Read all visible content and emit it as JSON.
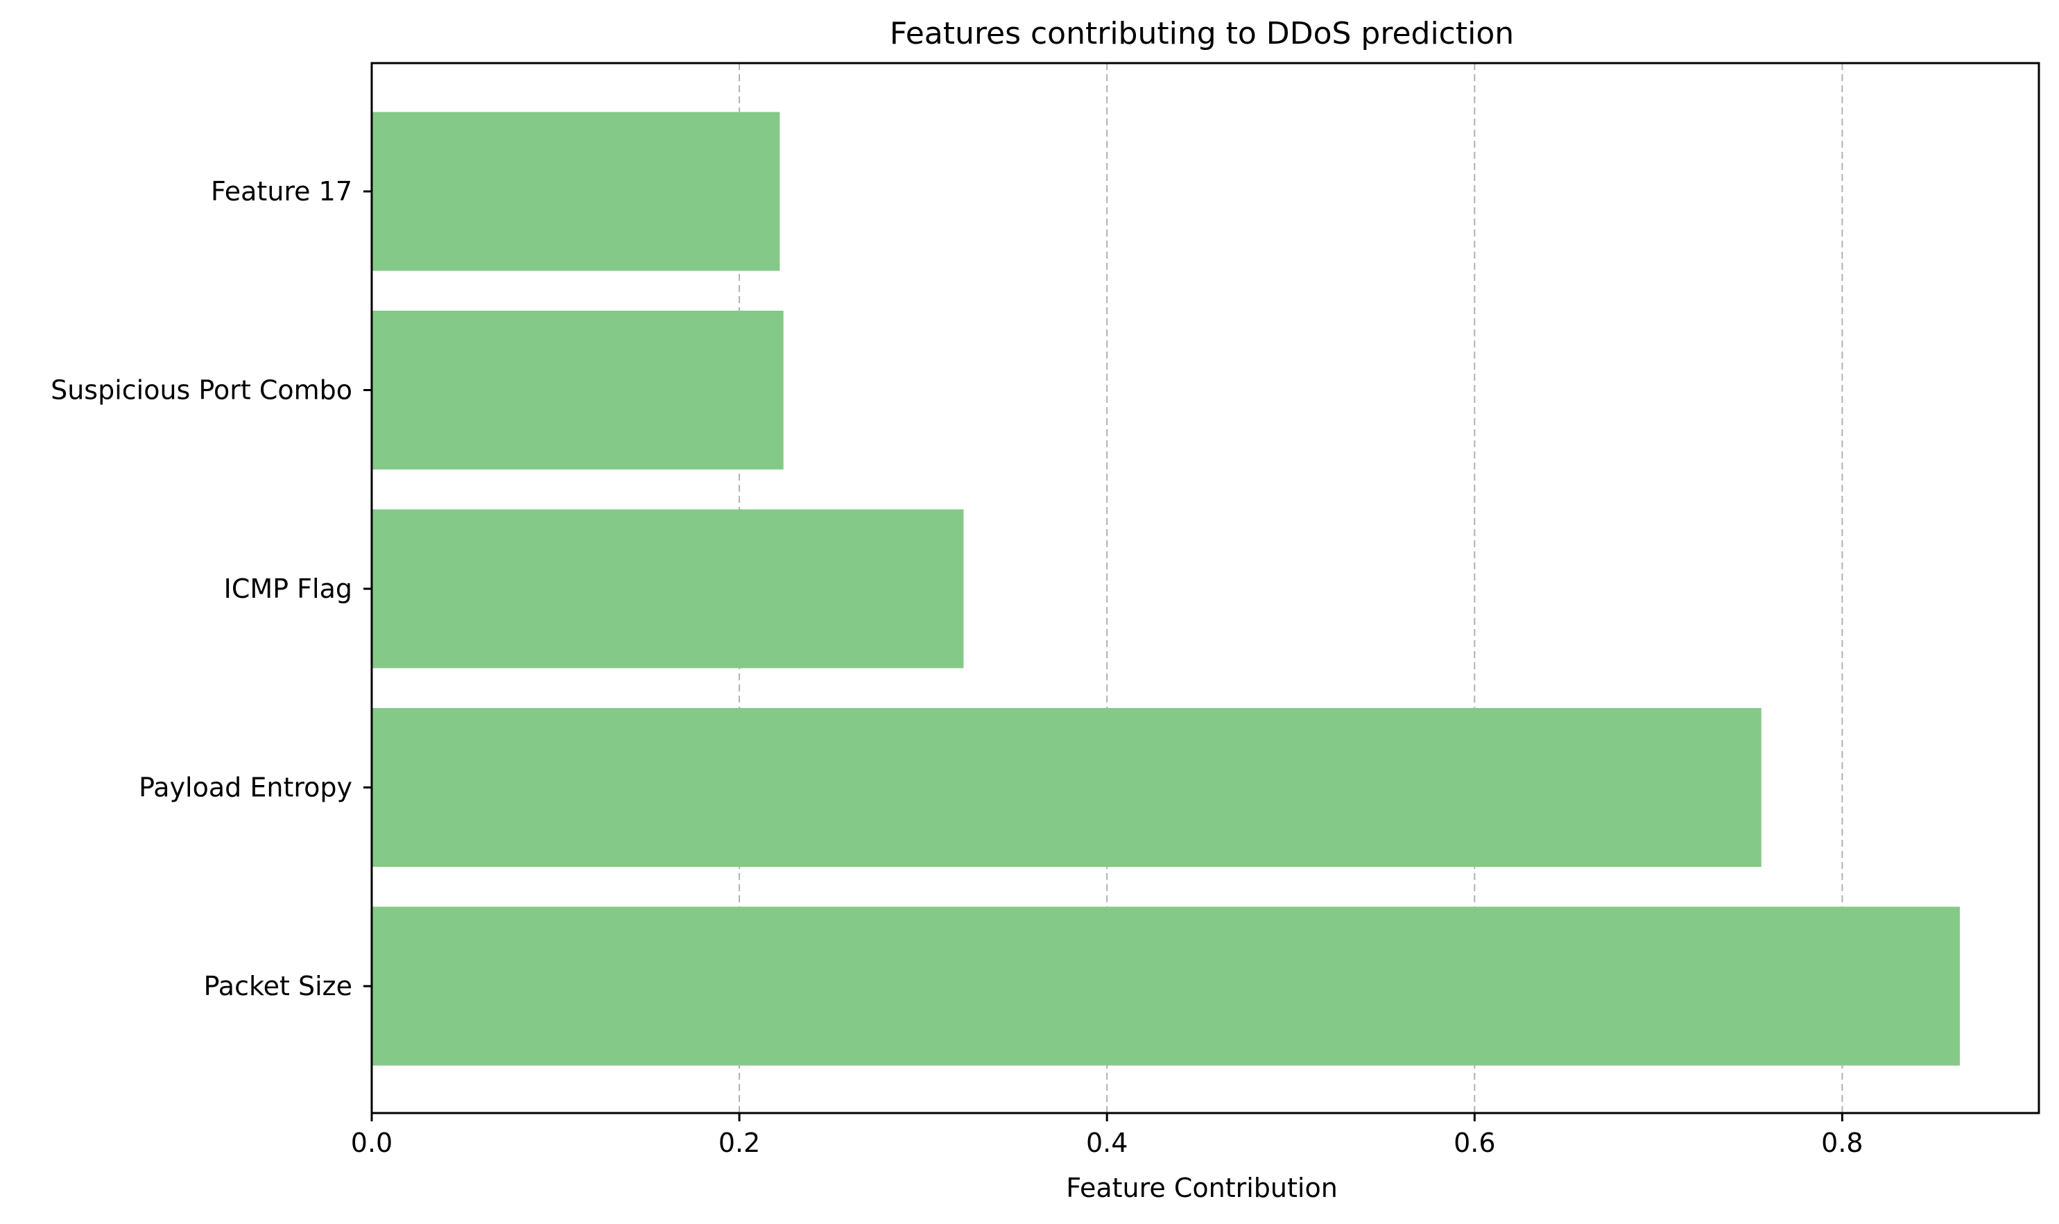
{
  "chart_data": {
    "type": "bar",
    "orientation": "horizontal",
    "title": "Features contributing to DDoS prediction",
    "xlabel": "Feature Contribution",
    "ylabel": "",
    "categories": [
      "Packet Size",
      "Payload Entropy",
      "ICMP Flag",
      "Suspicious Port Combo",
      "Feature 17"
    ],
    "values": [
      0.864,
      0.756,
      0.322,
      0.224,
      0.222
    ],
    "xlim": [
      0,
      0.907
    ],
    "xticks": [
      0.0,
      0.2,
      0.4,
      0.6,
      0.8
    ],
    "xtick_labels": [
      "0.0",
      "0.2",
      "0.4",
      "0.6",
      "0.8"
    ],
    "grid": "x-axis, dashed",
    "bar_color": "#84c988",
    "grid_color": "#b0b0b0",
    "legend": "none"
  }
}
